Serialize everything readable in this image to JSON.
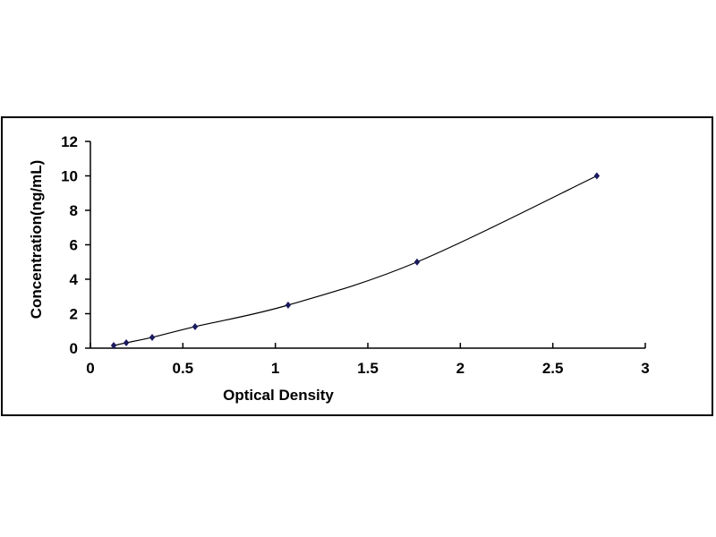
{
  "chart_data": {
    "type": "scatter",
    "title": "",
    "xlabel": "Optical Density",
    "ylabel": "Concentration(ng/mL)",
    "xlim": [
      0,
      3
    ],
    "ylim": [
      0,
      12
    ],
    "xticks": [
      "0",
      "0.5",
      "1",
      "1.5",
      "2",
      "2.5",
      "3"
    ],
    "yticks": [
      "0",
      "2",
      "4",
      "6",
      "8",
      "10",
      "12"
    ],
    "grid": false,
    "legend": "none",
    "trendline": "smooth curve",
    "marker_color": "#1a1a5e",
    "line_color": "#000000",
    "series": [
      {
        "x": [
          0.126,
          0.194,
          0.334,
          0.566,
          1.069,
          1.766,
          2.738
        ],
        "y": [
          0.156,
          0.312,
          0.625,
          1.25,
          2.5,
          5,
          10
        ]
      }
    ]
  }
}
